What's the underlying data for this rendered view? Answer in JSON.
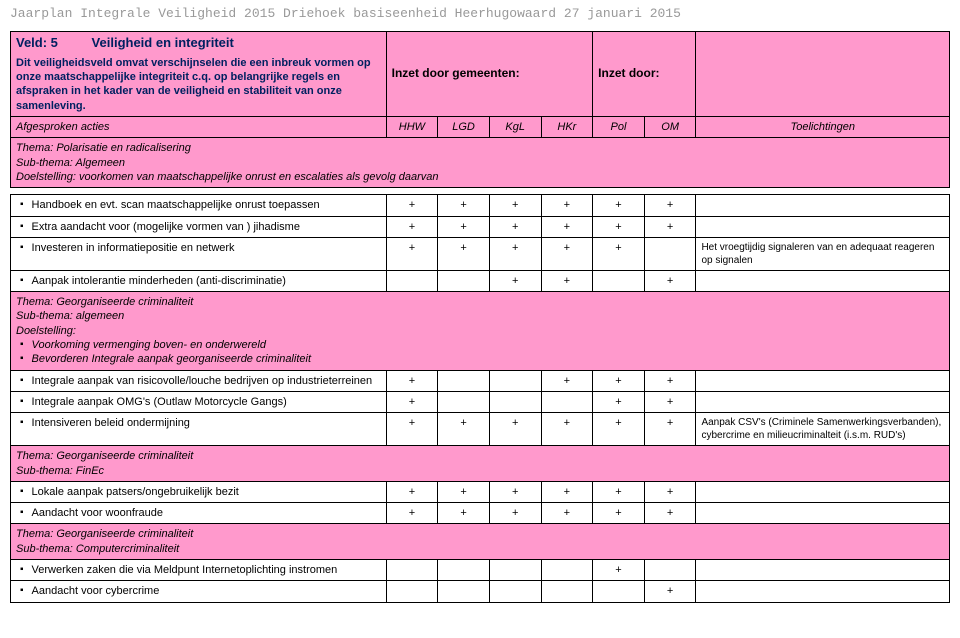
{
  "header": "Jaarplan Integrale Veiligheid 2015 Driehoek basiseenheid Heerhugowaard 27 januari 2015",
  "veld": {
    "label": "Veld: 5",
    "title": "Veiligheid en integriteit"
  },
  "intro": "Dit veiligheidsveld omvat verschijnselen die een inbreuk vormen op onze maatschappelijke integriteit c.q. op belangrijke regels en afspraken in het kader van de veiligheid en stabiliteit van onze samenleving.",
  "inzet_gemeenten": "Inzet door gemeenten:",
  "inzet_door": "Inzet door:",
  "columns": {
    "afgesproken": "Afgesproken acties",
    "c1": "HHW",
    "c2": "LGD",
    "c3": "KgL",
    "c4": "HKr",
    "c5": "Pol",
    "c6": "OM",
    "toelichtingen": "Toelichtingen"
  },
  "theme1": {
    "t": "Thema: Polarisatie en radicalisering",
    "s": "Sub-thema: Algemeen",
    "d": "Doelstelling: voorkomen van maatschappelijke onrust en escalaties als gevolg daarvan"
  },
  "rows1": [
    {
      "desc": "Handboek en evt. scan maatschappelijke onrust toepassen",
      "v": [
        "+",
        "+",
        "+",
        "+",
        "+",
        "+"
      ],
      "note": ""
    },
    {
      "desc": "Extra aandacht voor (mogelijke vormen van ) jihadisme",
      "v": [
        "+",
        "+",
        "+",
        "+",
        "+",
        "+"
      ],
      "note": ""
    },
    {
      "desc": "Investeren in informatiepositie en netwerk",
      "v": [
        "+",
        "+",
        "+",
        "+",
        "+",
        ""
      ],
      "note": "Het vroegtijdig signaleren van en adequaat reageren op signalen"
    },
    {
      "desc": "Aanpak intolerantie minderheden (anti-discriminatie)",
      "v": [
        "",
        "",
        "+",
        "+",
        "",
        "+"
      ],
      "note": ""
    }
  ],
  "theme2": {
    "t": "Thema: Georganiseerde criminaliteit",
    "s": "Sub-thema: algemeen",
    "d": "Doelstelling:",
    "b1": "Voorkoming vermenging boven- en onderwereld",
    "b2": "Bevorderen Integrale aanpak georganiseerde criminaliteit"
  },
  "rows2": [
    {
      "desc": "Integrale aanpak van risicovolle/louche bedrijven op industrieterreinen",
      "v": [
        "+",
        "",
        "",
        "+",
        "+",
        "+"
      ],
      "note": ""
    },
    {
      "desc": "Integrale aanpak OMG's (Outlaw Motorcycle Gangs)",
      "v": [
        "+",
        "",
        "",
        "",
        "+",
        "+"
      ],
      "note": ""
    },
    {
      "desc": "Intensiveren beleid ondermijning",
      "v": [
        "+",
        "+",
        "+",
        "+",
        "+",
        "+"
      ],
      "note": "Aanpak CSV's (Criminele Samenwerkingsverbanden), cybercrime en milieucriminalteit (i.s.m. RUD's)"
    }
  ],
  "theme3": {
    "t": "Thema: Georganiseerde criminaliteit",
    "s": "Sub-thema: FinEc"
  },
  "rows3": [
    {
      "desc": "Lokale aanpak patsers/ongebruikelijk bezit",
      "v": [
        "+",
        "+",
        "+",
        "+",
        "+",
        "+"
      ],
      "note": ""
    },
    {
      "desc": "Aandacht voor woonfraude",
      "v": [
        "+",
        "+",
        "+",
        "+",
        "+",
        "+"
      ],
      "note": ""
    }
  ],
  "theme4": {
    "t": "Thema: Georganiseerde criminaliteit",
    "s": "Sub-thema: Computercriminaliteit"
  },
  "rows4": [
    {
      "desc": "Verwerken zaken die via Meldpunt Internetoplichting instromen",
      "v": [
        "",
        "",
        "",
        "",
        "+",
        ""
      ],
      "note": ""
    },
    {
      "desc": "Aandacht voor cybercrime",
      "v": [
        "",
        "",
        "",
        "",
        "",
        "+"
      ],
      "note": ""
    }
  ]
}
